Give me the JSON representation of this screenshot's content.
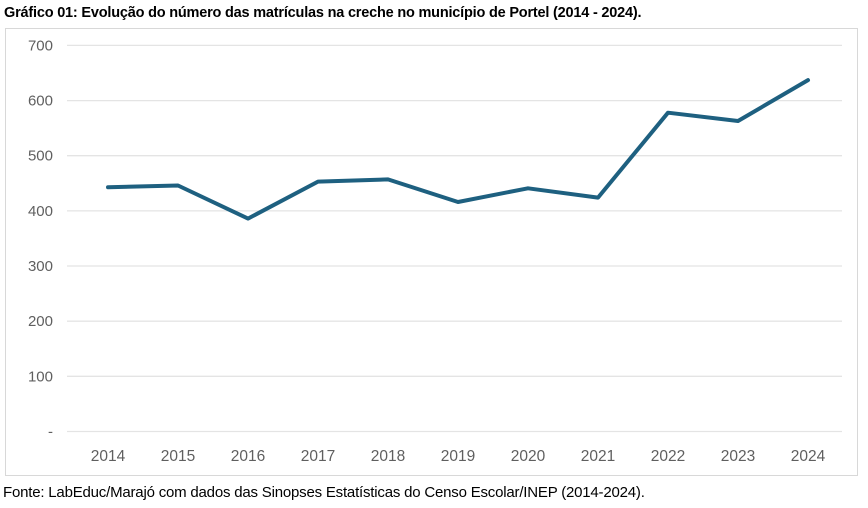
{
  "colors": {
    "line": "#1e6080",
    "grid": "#e4e4e4",
    "frame_border": "#d8d8d8",
    "tick_label": "#5f5f5f",
    "text": "#000000",
    "background": "#ffffff"
  },
  "chart_data": {
    "type": "line",
    "title": "Gráfico 01: Evolução do número das matrículas na creche no município de Portel (2014 - 2024).",
    "source_note": "Fonte: LabEduc/Marajó com dados das Sinopses Estatísticas do Censo Escolar/INEP (2014-2024).",
    "x_categories": [
      "2014",
      "2015",
      "2016",
      "2017",
      "2018",
      "2019",
      "2020",
      "2021",
      "2022",
      "2023",
      "2024"
    ],
    "values": [
      443,
      446,
      386,
      453,
      457,
      416,
      441,
      424,
      578,
      563,
      637
    ],
    "xlabel": "",
    "ylabel": "",
    "ylim": [
      0,
      700
    ],
    "y_ticks": [
      0,
      100,
      200,
      300,
      400,
      500,
      600,
      700
    ],
    "y_tick_labels": [
      "-",
      "100",
      "200",
      "300",
      "400",
      "500",
      "600",
      "700"
    ],
    "grid": true,
    "legend": "none",
    "marker": "none"
  }
}
